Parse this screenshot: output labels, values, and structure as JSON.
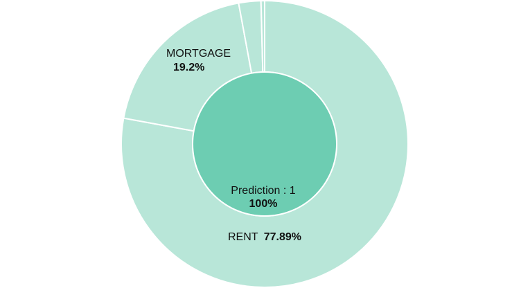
{
  "chart_data": {
    "type": "pie",
    "title": "",
    "inner": {
      "label": "Prediction : 1",
      "value_label": "100%",
      "value": 100,
      "color": "#6dcdb2"
    },
    "outer": {
      "color": "#b8e6d8",
      "slices": [
        {
          "name": "RENT",
          "value": 77.89,
          "value_label": "77.89%"
        },
        {
          "name": "MORTGAGE",
          "value": 19.2,
          "value_label": "19.2%"
        },
        {
          "name": "",
          "value": 2.5,
          "value_label": ""
        },
        {
          "name": "",
          "value": 0.41,
          "value_label": ""
        }
      ]
    }
  }
}
